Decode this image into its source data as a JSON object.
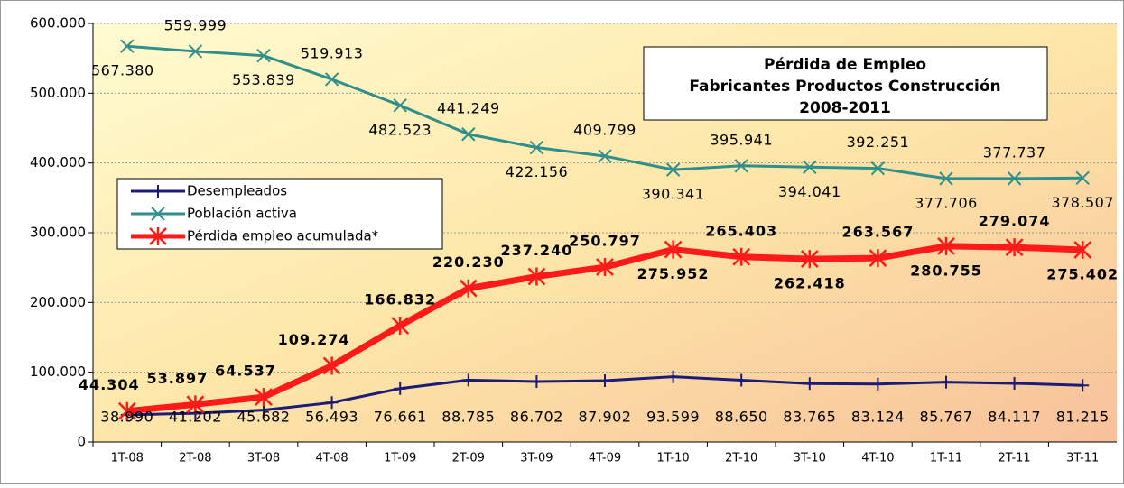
{
  "chart_data": {
    "type": "line",
    "title": [
      "Pérdida de Empleo",
      "Fabricantes Productos Construcción",
      "2008-2011"
    ],
    "categories": [
      "1T-08",
      "2T-08",
      "3T-08",
      "4T-08",
      "1T-09",
      "2T-09",
      "3T-09",
      "4T-09",
      "1T-10",
      "2T-10",
      "3T-10",
      "4T-10",
      "1T-11",
      "2T-11",
      "3T-11"
    ],
    "series": [
      {
        "name": "Desempleados",
        "color": "#1c1c78",
        "values": [
          38990,
          41202,
          45682,
          56493,
          76661,
          88785,
          86702,
          87902,
          93599,
          88650,
          83765,
          83124,
          85767,
          84117,
          81215
        ],
        "value_labels": [
          "38.990",
          "41.202",
          "45.682",
          "56.493",
          "76.661",
          "88.785",
          "86.702",
          "87.902",
          "93.599",
          "88.650",
          "83.765",
          "83.124",
          "85.767",
          "84.117",
          "81.215"
        ]
      },
      {
        "name": "Población activa",
        "color": "#2f8f8a",
        "values": [
          567380,
          559999,
          553839,
          519913,
          482523,
          441249,
          422156,
          409799,
          390341,
          395941,
          394041,
          392251,
          377706,
          377737,
          378507
        ],
        "value_labels": [
          "567.380",
          "559.999",
          "553.839",
          "519.913",
          "482.523",
          "441.249",
          "422.156",
          "409.799",
          "390.341",
          "395.941",
          "394.041",
          "392.251",
          "377.706",
          "377.737",
          "378.507"
        ]
      },
      {
        "name": "Pérdida empleo acumulada*",
        "color": "#ff1a1a",
        "values": [
          44304,
          53897,
          64537,
          109274,
          166832,
          220230,
          237240,
          250797,
          275952,
          265403,
          262418,
          263567,
          280755,
          279074,
          275402
        ],
        "value_labels": [
          "44.304",
          "53.897",
          "64.537",
          "109.274",
          "166.832",
          "220.230",
          "237.240",
          "250.797",
          "275.952",
          "265.403",
          "262.418",
          "263.567",
          "280.755",
          "279.074",
          "275.402"
        ]
      }
    ],
    "ylim": [
      0,
      600000
    ],
    "yticks": [
      0,
      {
        "value": 100000,
        "label": "100.000"
      },
      {
        "value": 200000,
        "label": "200.000"
      },
      {
        "value": 300000,
        "label": "300.000"
      },
      {
        "value": 400000,
        "label": "400.000"
      },
      {
        "value": 500000,
        "label": "500.000"
      },
      {
        "value": 600000,
        "label": "600.000"
      }
    ],
    "grid": true
  }
}
